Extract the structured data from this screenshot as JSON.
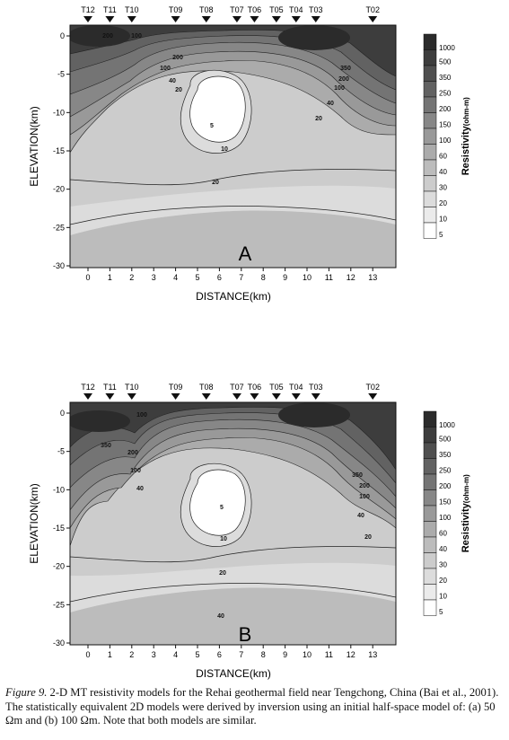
{
  "panels": [
    {
      "id": "A",
      "panel_label": "A",
      "stations": [
        "T12",
        "T11",
        "T10",
        "T09",
        "T08",
        "T07",
        "T06",
        "T05",
        "T04",
        "T03",
        "T02"
      ],
      "station_km": [
        0,
        1,
        2,
        4,
        5.4,
        6.8,
        7.6,
        8.6,
        9.5,
        10.4,
        13
      ],
      "y_axis": {
        "label": "ELEVATION(km)",
        "ticks": [
          "0",
          "-5",
          "-10",
          "-15",
          "-20",
          "-25",
          "-30"
        ]
      },
      "x_axis": {
        "label": "DISTANCE(km)",
        "ticks": [
          "0",
          "1",
          "2",
          "3",
          "4",
          "5",
          "6",
          "7",
          "8",
          "9",
          "10",
          "11",
          "12",
          "13"
        ]
      },
      "contour_labels": [
        "200",
        "100",
        "200",
        "100",
        "40",
        "20",
        "5",
        "10",
        "20",
        "350",
        "200",
        "100",
        "40",
        "20"
      ],
      "colorbar": {
        "title": "Resistivity",
        "unit": "(ohm-m)",
        "labels": [
          "1000",
          "500",
          "350",
          "250",
          "200",
          "150",
          "100",
          "60",
          "40",
          "30",
          "20",
          "10",
          "5"
        ]
      }
    },
    {
      "id": "B",
      "panel_label": "B",
      "stations": [
        "T12",
        "T11",
        "T10",
        "T09",
        "T08",
        "T07",
        "T06",
        "T05",
        "T04",
        "T03",
        "T02"
      ],
      "station_km": [
        0,
        1,
        2,
        4,
        5.4,
        6.8,
        7.6,
        8.6,
        9.5,
        10.4,
        13
      ],
      "y_axis": {
        "label": "ELEVATION(km)",
        "ticks": [
          "0",
          "-5",
          "-10",
          "-15",
          "-20",
          "-25",
          "-30"
        ]
      },
      "x_axis": {
        "label": "DISTANCE(km)",
        "ticks": [
          "0",
          "1",
          "2",
          "3",
          "4",
          "5",
          "6",
          "7",
          "8",
          "9",
          "10",
          "11",
          "12",
          "13"
        ]
      },
      "contour_labels": [
        "100",
        "350",
        "200",
        "100",
        "40",
        "5",
        "10",
        "20",
        "40",
        "350",
        "200",
        "100",
        "40",
        "20"
      ],
      "colorbar": {
        "title": "Resistivity",
        "unit": "(ohm-m)",
        "labels": [
          "1000",
          "500",
          "350",
          "250",
          "200",
          "150",
          "100",
          "60",
          "40",
          "30",
          "20",
          "10",
          "5"
        ]
      }
    }
  ],
  "caption": {
    "figure_label": "Figure 9.",
    "text": " 2-D MT resistivity models for the Rehai geothermal field near Tengchong, China (Bai et al., 2001). The statistically equivalent 2D models were derived by inversion using an initial half-space model of: (a) 50 Ωm and (b) 100 Ωm. Note that both models are similar."
  },
  "colors": {
    "scale": [
      "#2b2b2b",
      "#3d3d3d",
      "#4f4f4f",
      "#626262",
      "#747474",
      "#878787",
      "#999999",
      "#ababab",
      "#bcbcbc",
      "#cccccc",
      "#dcdcdc",
      "#ebebeb",
      "#ffffff"
    ]
  }
}
